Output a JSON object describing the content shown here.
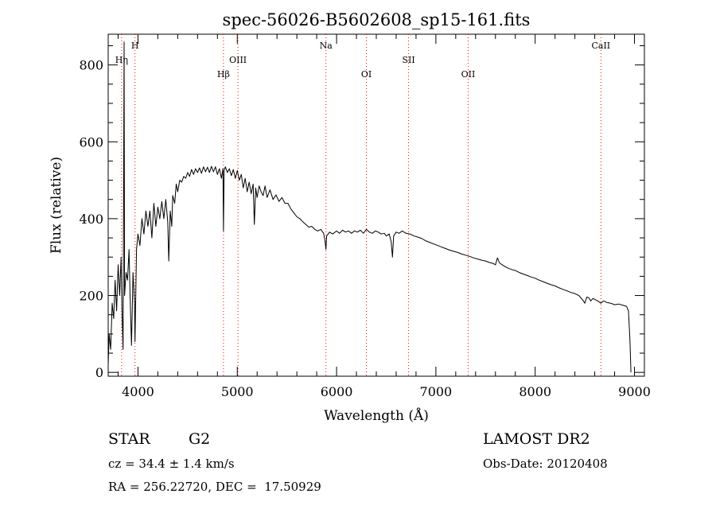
{
  "chart_data": {
    "type": "line",
    "title": "spec-56026-B5602608_sp15-161.fits",
    "xlabel": "Wavelength (Å)",
    "ylabel": "Flux (relative)",
    "xlim": [
      3700,
      9100
    ],
    "ylim": [
      -10,
      880
    ],
    "x_ticks": [
      4000,
      5000,
      6000,
      7000,
      8000,
      9000
    ],
    "y_ticks": [
      0,
      200,
      400,
      600,
      800
    ],
    "x_tick_labels": [
      "4000",
      "5000",
      "6000",
      "7000",
      "8000",
      "9000"
    ],
    "y_tick_labels": [
      "0",
      "200",
      "400",
      "600",
      "800"
    ],
    "grid": false,
    "line_color": "#000000",
    "marker_color": "#ff0000",
    "spectral_lines": [
      {
        "name": "Hη",
        "x": 3835
      },
      {
        "name": "H",
        "x": 3970
      },
      {
        "name": "Hβ",
        "x": 4861
      },
      {
        "name": "OIII",
        "x": 5007
      },
      {
        "name": "Na",
        "x": 5893
      },
      {
        "name": "OI",
        "x": 6300
      },
      {
        "name": "SII",
        "x": 6725
      },
      {
        "name": "OII",
        "x": 7325
      },
      {
        "name": "CaII",
        "x": 8662
      }
    ],
    "series": [
      {
        "points": [
          [
            3700,
            20
          ],
          [
            3710,
            100
          ],
          [
            3725,
            60
          ],
          [
            3740,
            180
          ],
          [
            3755,
            140
          ],
          [
            3770,
            240
          ],
          [
            3785,
            160
          ],
          [
            3800,
            280
          ],
          [
            3815,
            200
          ],
          [
            3830,
            300
          ],
          [
            3840,
            150
          ],
          [
            3850,
            60
          ],
          [
            3860,
            860
          ],
          [
            3865,
            200
          ],
          [
            3880,
            260
          ],
          [
            3895,
            240
          ],
          [
            3910,
            320
          ],
          [
            3920,
            200
          ],
          [
            3935,
            70
          ],
          [
            3950,
            260
          ],
          [
            3965,
            180
          ],
          [
            3970,
            80
          ],
          [
            3985,
            320
          ],
          [
            4000,
            360
          ],
          [
            4020,
            330
          ],
          [
            4040,
            400
          ],
          [
            4060,
            360
          ],
          [
            4080,
            420
          ],
          [
            4100,
            380
          ],
          [
            4120,
            420
          ],
          [
            4140,
            350
          ],
          [
            4160,
            440
          ],
          [
            4180,
            380
          ],
          [
            4200,
            430
          ],
          [
            4220,
            400
          ],
          [
            4240,
            445
          ],
          [
            4260,
            400
          ],
          [
            4280,
            450
          ],
          [
            4300,
            390
          ],
          [
            4310,
            290
          ],
          [
            4325,
            420
          ],
          [
            4340,
            380
          ],
          [
            4350,
            460
          ],
          [
            4370,
            440
          ],
          [
            4385,
            490
          ],
          [
            4400,
            470
          ],
          [
            4420,
            500
          ],
          [
            4440,
            495
          ],
          [
            4460,
            510
          ],
          [
            4480,
            505
          ],
          [
            4500,
            520
          ],
          [
            4520,
            510
          ],
          [
            4540,
            528
          ],
          [
            4560,
            515
          ],
          [
            4580,
            530
          ],
          [
            4600,
            520
          ],
          [
            4620,
            532
          ],
          [
            4640,
            518
          ],
          [
            4660,
            535
          ],
          [
            4680,
            522
          ],
          [
            4700,
            534
          ],
          [
            4720,
            520
          ],
          [
            4740,
            536
          ],
          [
            4760,
            522
          ],
          [
            4780,
            535
          ],
          [
            4800,
            515
          ],
          [
            4820,
            530
          ],
          [
            4840,
            505
          ],
          [
            4855,
            530
          ],
          [
            4861,
            368
          ],
          [
            4867,
            525
          ],
          [
            4880,
            535
          ],
          [
            4900,
            520
          ],
          [
            4920,
            530
          ],
          [
            4940,
            512
          ],
          [
            4960,
            528
          ],
          [
            4980,
            505
          ],
          [
            5000,
            525
          ],
          [
            5020,
            500
          ],
          [
            5040,
            515
          ],
          [
            5060,
            480
          ],
          [
            5080,
            505
          ],
          [
            5100,
            470
          ],
          [
            5120,
            495
          ],
          [
            5140,
            465
          ],
          [
            5160,
            490
          ],
          [
            5172,
            385
          ],
          [
            5185,
            480
          ],
          [
            5200,
            455
          ],
          [
            5220,
            485
          ],
          [
            5240,
            470
          ],
          [
            5260,
            460
          ],
          [
            5280,
            485
          ],
          [
            5300,
            455
          ],
          [
            5330,
            475
          ],
          [
            5360,
            450
          ],
          [
            5390,
            462
          ],
          [
            5420,
            445
          ],
          [
            5450,
            455
          ],
          [
            5480,
            440
          ],
          [
            5510,
            440
          ],
          [
            5540,
            425
          ],
          [
            5570,
            415
          ],
          [
            5600,
            405
          ],
          [
            5630,
            400
          ],
          [
            5660,
            392
          ],
          [
            5690,
            385
          ],
          [
            5720,
            378
          ],
          [
            5750,
            380
          ],
          [
            5780,
            372
          ],
          [
            5810,
            368
          ],
          [
            5840,
            372
          ],
          [
            5870,
            362
          ],
          [
            5885,
            340
          ],
          [
            5893,
            320
          ],
          [
            5900,
            355
          ],
          [
            5930,
            365
          ],
          [
            5960,
            360
          ],
          [
            6000,
            368
          ],
          [
            6030,
            362
          ],
          [
            6060,
            370
          ],
          [
            6090,
            365
          ],
          [
            6120,
            368
          ],
          [
            6150,
            362
          ],
          [
            6180,
            368
          ],
          [
            6210,
            365
          ],
          [
            6240,
            370
          ],
          [
            6270,
            362
          ],
          [
            6300,
            372
          ],
          [
            6330,
            365
          ],
          [
            6360,
            362
          ],
          [
            6390,
            368
          ],
          [
            6420,
            365
          ],
          [
            6450,
            360
          ],
          [
            6480,
            362
          ],
          [
            6500,
            355
          ],
          [
            6530,
            360
          ],
          [
            6550,
            340
          ],
          [
            6563,
            300
          ],
          [
            6575,
            355
          ],
          [
            6600,
            365
          ],
          [
            6630,
            362
          ],
          [
            6660,
            368
          ],
          [
            6700,
            362
          ],
          [
            6740,
            360
          ],
          [
            6780,
            355
          ],
          [
            6820,
            352
          ],
          [
            6860,
            348
          ],
          [
            6900,
            342
          ],
          [
            6940,
            338
          ],
          [
            6980,
            334
          ],
          [
            7020,
            330
          ],
          [
            7060,
            326
          ],
          [
            7100,
            322
          ],
          [
            7140,
            318
          ],
          [
            7180,
            315
          ],
          [
            7220,
            312
          ],
          [
            7260,
            308
          ],
          [
            7300,
            305
          ],
          [
            7340,
            302
          ],
          [
            7380,
            298
          ],
          [
            7420,
            295
          ],
          [
            7460,
            292
          ],
          [
            7500,
            290
          ],
          [
            7540,
            286
          ],
          [
            7580,
            283
          ],
          [
            7600,
            280
          ],
          [
            7620,
            298
          ],
          [
            7640,
            285
          ],
          [
            7680,
            278
          ],
          [
            7720,
            272
          ],
          [
            7760,
            268
          ],
          [
            7800,
            265
          ],
          [
            7840,
            260
          ],
          [
            7880,
            256
          ],
          [
            7920,
            252
          ],
          [
            7960,
            248
          ],
          [
            8000,
            245
          ],
          [
            8040,
            240
          ],
          [
            8080,
            236
          ],
          [
            8120,
            232
          ],
          [
            8160,
            228
          ],
          [
            8200,
            225
          ],
          [
            8240,
            220
          ],
          [
            8280,
            216
          ],
          [
            8320,
            212
          ],
          [
            8360,
            208
          ],
          [
            8400,
            205
          ],
          [
            8440,
            200
          ],
          [
            8480,
            188
          ],
          [
            8500,
            180
          ],
          [
            8520,
            196
          ],
          [
            8540,
            194
          ],
          [
            8560,
            186
          ],
          [
            8580,
            192
          ],
          [
            8600,
            190
          ],
          [
            8630,
            186
          ],
          [
            8662,
            180
          ],
          [
            8690,
            186
          ],
          [
            8720,
            182
          ],
          [
            8760,
            180
          ],
          [
            8800,
            176
          ],
          [
            8840,
            178
          ],
          [
            8880,
            175
          ],
          [
            8920,
            172
          ],
          [
            8940,
            160
          ],
          [
            8955,
            80
          ],
          [
            8965,
            0
          ]
        ]
      }
    ]
  },
  "info": {
    "object_type": "STAR",
    "subclass": "G2",
    "survey": "LAMOST DR2",
    "redshift": "cz = 34.4 ± 1.4 km/s",
    "obs_date": "Obs-Date: 20120408",
    "coords": "RA = 256.22720, DEC =  17.50929"
  }
}
